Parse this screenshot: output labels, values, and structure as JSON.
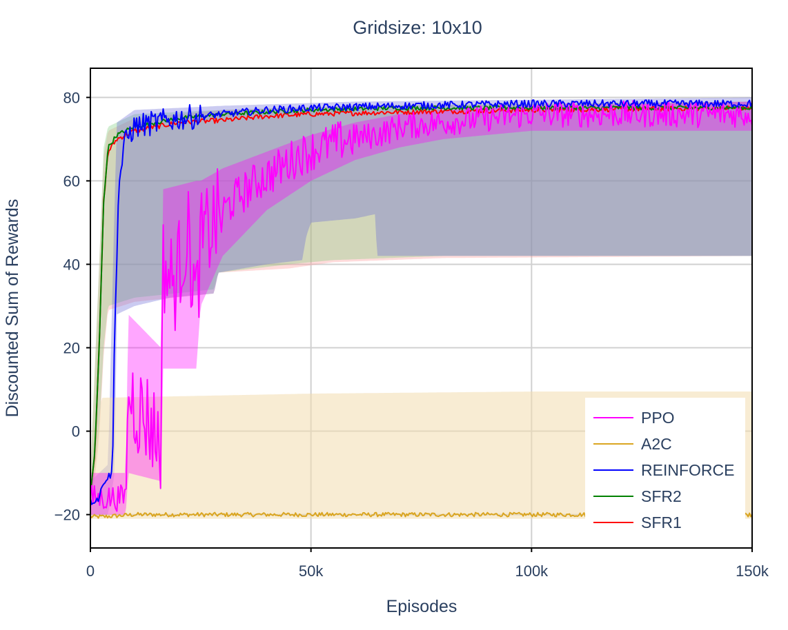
{
  "chart_data": {
    "type": "line",
    "title": "Gridsize: 10x10",
    "xlabel": "Episodes",
    "ylabel": "Discounted Sum of Rewards",
    "xlim": [
      0,
      150000
    ],
    "ylim": [
      -28,
      87
    ],
    "x_ticks": [
      0,
      50000,
      100000,
      150000
    ],
    "x_tick_labels": [
      "0",
      "50k",
      "100k",
      "150k"
    ],
    "y_ticks": [
      -20,
      0,
      20,
      40,
      60,
      80
    ],
    "y_tick_labels": [
      "−20",
      "0",
      "20",
      "40",
      "60",
      "80"
    ],
    "grid": true,
    "legend_position": "bottom-right",
    "series": [
      {
        "name": "PPO",
        "color": "#ff00ff",
        "band_color": "#ff00ff",
        "line": [
          [
            0,
            -16
          ],
          [
            3000,
            -16
          ],
          [
            8000,
            -16
          ],
          [
            8600,
            10
          ],
          [
            11000,
            5
          ],
          [
            13000,
            3
          ],
          [
            16000,
            -3
          ],
          [
            16500,
            40
          ],
          [
            19000,
            35
          ],
          [
            22000,
            48
          ],
          [
            24000,
            30
          ],
          [
            25000,
            45
          ],
          [
            28000,
            50
          ],
          [
            32000,
            55
          ],
          [
            38000,
            60
          ],
          [
            43000,
            63
          ],
          [
            47000,
            66
          ],
          [
            52000,
            68
          ],
          [
            58000,
            70
          ],
          [
            65000,
            71
          ],
          [
            70000,
            73
          ],
          [
            80000,
            74
          ],
          [
            90000,
            75
          ],
          [
            100000,
            76
          ],
          [
            120000,
            76
          ],
          [
            150000,
            76
          ]
        ],
        "band_low": [
          [
            0,
            -20
          ],
          [
            8000,
            -20
          ],
          [
            8600,
            -10
          ],
          [
            16000,
            -12
          ],
          [
            16500,
            15
          ],
          [
            24000,
            15
          ],
          [
            25000,
            30
          ],
          [
            30000,
            42
          ],
          [
            40000,
            53
          ],
          [
            50000,
            60
          ],
          [
            60000,
            65
          ],
          [
            70000,
            68
          ],
          [
            80000,
            70
          ],
          [
            100000,
            72
          ],
          [
            150000,
            72
          ]
        ],
        "band_high": [
          [
            0,
            -10
          ],
          [
            8000,
            -10
          ],
          [
            8600,
            28
          ],
          [
            16000,
            20
          ],
          [
            16500,
            58
          ],
          [
            24000,
            60
          ],
          [
            25000,
            60
          ],
          [
            30000,
            63
          ],
          [
            40000,
            67
          ],
          [
            50000,
            71
          ],
          [
            60000,
            74
          ],
          [
            70000,
            76
          ],
          [
            80000,
            77
          ],
          [
            100000,
            78
          ],
          [
            150000,
            79
          ]
        ]
      },
      {
        "name": "A2C",
        "color": "#daa520",
        "band_color": "#f3dcae",
        "line": [
          [
            0,
            -20.5
          ],
          [
            3000,
            -20.5
          ],
          [
            10000,
            -20
          ],
          [
            30000,
            -20
          ],
          [
            60000,
            -20
          ],
          [
            90000,
            -20
          ],
          [
            120000,
            -20
          ],
          [
            150000,
            -20
          ]
        ],
        "band_low": [
          [
            0,
            -21
          ],
          [
            150000,
            -21
          ]
        ],
        "band_high": [
          [
            0,
            -18
          ],
          [
            2500,
            8
          ],
          [
            50000,
            9
          ],
          [
            100000,
            9.5
          ],
          [
            150000,
            9.5
          ]
        ]
      },
      {
        "name": "REINFORCE",
        "color": "#0000ff",
        "band_color": "#6b6bd8",
        "line": [
          [
            0,
            -17
          ],
          [
            2000,
            -16
          ],
          [
            3000,
            -12
          ],
          [
            5000,
            -10
          ],
          [
            5600,
            30
          ],
          [
            6500,
            60
          ],
          [
            8000,
            70
          ],
          [
            10000,
            73
          ],
          [
            15000,
            74
          ],
          [
            20000,
            75
          ],
          [
            30000,
            76
          ],
          [
            40000,
            77
          ],
          [
            50000,
            77.5
          ],
          [
            70000,
            78
          ],
          [
            100000,
            78.5
          ],
          [
            150000,
            78.5
          ]
        ],
        "band_low": [
          [
            0,
            -20
          ],
          [
            4000,
            -20
          ],
          [
            5500,
            -10
          ],
          [
            6000,
            28
          ],
          [
            10000,
            30
          ],
          [
            18000,
            32
          ],
          [
            28000,
            33
          ],
          [
            29000,
            38
          ],
          [
            40000,
            40
          ],
          [
            48000,
            41
          ],
          [
            49000,
            47
          ],
          [
            50000,
            50
          ],
          [
            60000,
            51
          ],
          [
            64500,
            52
          ],
          [
            65000,
            42
          ],
          [
            150000,
            42
          ]
        ],
        "band_high": [
          [
            0,
            -12
          ],
          [
            4000,
            -8
          ],
          [
            5500,
            55
          ],
          [
            6000,
            74
          ],
          [
            10000,
            77
          ],
          [
            30000,
            78
          ],
          [
            60000,
            79
          ],
          [
            150000,
            80
          ]
        ]
      },
      {
        "name": "SFR2",
        "color": "#008000",
        "band_color": "#7fce7f",
        "line": [
          [
            0,
            -15
          ],
          [
            1000,
            -5
          ],
          [
            2000,
            20
          ],
          [
            3000,
            55
          ],
          [
            4000,
            68
          ],
          [
            6000,
            71
          ],
          [
            10000,
            73
          ],
          [
            15000,
            74
          ],
          [
            20000,
            75
          ],
          [
            30000,
            76
          ],
          [
            40000,
            76.5
          ],
          [
            50000,
            77
          ],
          [
            70000,
            77.5
          ],
          [
            100000,
            77.5
          ],
          [
            150000,
            77.5
          ]
        ],
        "band_low": [
          [
            0,
            -20
          ],
          [
            2000,
            0
          ],
          [
            3000,
            20
          ],
          [
            4000,
            30
          ],
          [
            10000,
            32
          ],
          [
            28000,
            34
          ],
          [
            29000,
            38
          ],
          [
            45000,
            40
          ],
          [
            55000,
            41
          ],
          [
            80000,
            42
          ],
          [
            150000,
            42
          ]
        ],
        "band_high": [
          [
            0,
            -10
          ],
          [
            2000,
            40
          ],
          [
            3000,
            68
          ],
          [
            4000,
            73
          ],
          [
            10000,
            76
          ],
          [
            30000,
            77
          ],
          [
            60000,
            78
          ],
          [
            150000,
            79
          ]
        ]
      },
      {
        "name": "SFR1",
        "color": "#ff0000",
        "band_color": "#ff9999",
        "line": [
          [
            0,
            -15
          ],
          [
            1000,
            -5
          ],
          [
            2000,
            20
          ],
          [
            3000,
            55
          ],
          [
            4000,
            67
          ],
          [
            6000,
            70
          ],
          [
            10000,
            72
          ],
          [
            15000,
            73
          ],
          [
            20000,
            74
          ],
          [
            30000,
            74.5
          ],
          [
            40000,
            75.5
          ],
          [
            50000,
            76
          ],
          [
            70000,
            76.5
          ],
          [
            100000,
            77
          ],
          [
            150000,
            77.5
          ]
        ],
        "band_low": [
          [
            0,
            -21
          ],
          [
            2000,
            -2
          ],
          [
            3000,
            18
          ],
          [
            4000,
            29
          ],
          [
            10000,
            31
          ],
          [
            28000,
            33
          ],
          [
            29000,
            38
          ],
          [
            45000,
            39
          ],
          [
            55000,
            40.5
          ],
          [
            80000,
            41.5
          ],
          [
            150000,
            42
          ]
        ],
        "band_high": [
          [
            0,
            -10
          ],
          [
            2000,
            40
          ],
          [
            3000,
            66
          ],
          [
            4000,
            72
          ],
          [
            10000,
            75
          ],
          [
            30000,
            77
          ],
          [
            60000,
            78
          ],
          [
            150000,
            79
          ]
        ]
      }
    ]
  }
}
